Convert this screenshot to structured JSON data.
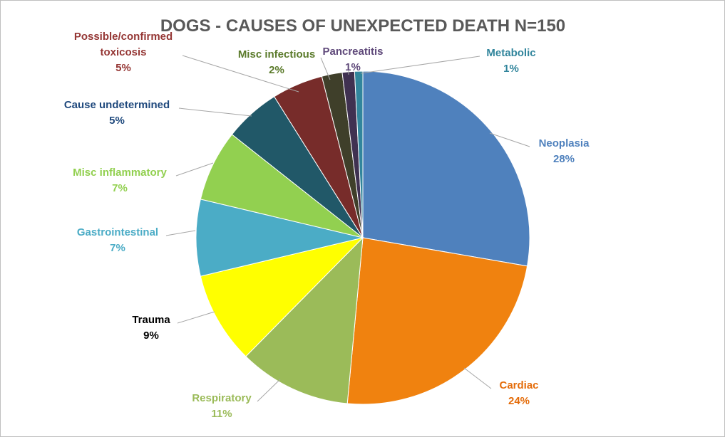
{
  "chart_data": {
    "type": "pie",
    "title": "DOGS - CAUSES OF UNEXPECTED DEATH N=150",
    "slices": [
      {
        "name": "Neoplasia",
        "percent_label": "28%",
        "value": 28,
        "color": "#4F81BD"
      },
      {
        "name": "Cardiac",
        "percent_label": "24%",
        "value": 24,
        "color": "#F0820F"
      },
      {
        "name": "Respiratory",
        "percent_label": "11%",
        "value": 11,
        "color": "#9BBB59"
      },
      {
        "name": "Trauma",
        "percent_label": "9%",
        "value": 9,
        "color": "#FFFF00"
      },
      {
        "name": "Gastrointestinal",
        "percent_label": "7%",
        "value": 7.5,
        "color": "#4BACC6"
      },
      {
        "name": "Misc inflammatory",
        "percent_label": "7%",
        "value": 7,
        "color": "#92D050"
      },
      {
        "name": "Cause undetermined",
        "percent_label": "5%",
        "value": 5.5,
        "color": "#215868"
      },
      {
        "name": "Possible/confirmed toxicosis",
        "name_lines": [
          "Possible/confirmed",
          "toxicosis"
        ],
        "percent_label": "5%",
        "value": 5,
        "color": "#772C2A"
      },
      {
        "name": "Misc infectious",
        "percent_label": "2%",
        "value": 2,
        "color": "#3F3F2A"
      },
      {
        "name": "Pancreatitis",
        "percent_label": "1%",
        "value": 1.2,
        "color": "#403151"
      },
      {
        "name": "Metabolic",
        "percent_label": "1%",
        "value": 0.8,
        "color": "#31859C"
      }
    ],
    "label_colors": {
      "Neoplasia": "#4F81BD",
      "Cardiac": "#E46C0A",
      "Respiratory": "#9BBB59",
      "Trauma": "#000000",
      "Gastrointestinal": "#4BACC6",
      "Misc inflammatory": "#92D050",
      "Cause undetermined": "#1F497D",
      "Possible/confirmed toxicosis": "#953735",
      "Misc infectious": "#5A7A2A",
      "Pancreatitis": "#5F497A",
      "Metabolic": "#31859C"
    },
    "leader_color": "#A6A6A6"
  }
}
